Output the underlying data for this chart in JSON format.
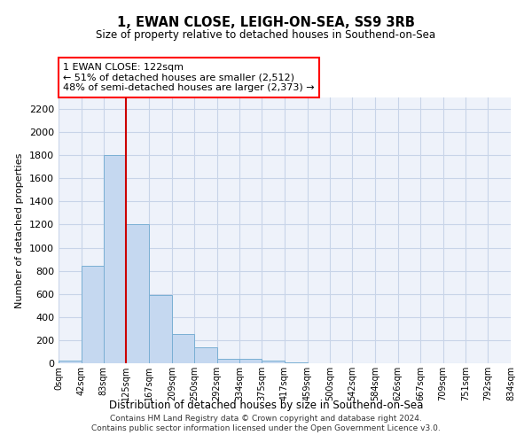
{
  "title": "1, EWAN CLOSE, LEIGH-ON-SEA, SS9 3RB",
  "subtitle": "Size of property relative to detached houses in Southend-on-Sea",
  "xlabel": "Distribution of detached houses by size in Southend-on-Sea",
  "ylabel": "Number of detached properties",
  "footer_line1": "Contains HM Land Registry data © Crown copyright and database right 2024.",
  "footer_line2": "Contains public sector information licensed under the Open Government Licence v3.0.",
  "annotation_line1": "1 EWAN CLOSE: 122sqm",
  "annotation_line2": "← 51% of detached houses are smaller (2,512)",
  "annotation_line3": "48% of semi-detached houses are larger (2,373) →",
  "bar_edges": [
    0,
    42,
    83,
    125,
    167,
    209,
    250,
    292,
    334,
    375,
    417,
    459,
    500,
    542,
    584,
    626,
    667,
    709,
    751,
    792,
    834
  ],
  "bar_heights": [
    25,
    845,
    1800,
    1200,
    590,
    255,
    135,
    35,
    35,
    25,
    10,
    0,
    0,
    0,
    0,
    0,
    0,
    0,
    0,
    0
  ],
  "bar_color": "#c5d8f0",
  "bar_edgecolor": "#7aafd4",
  "grid_color": "#c8d4e8",
  "vline_x": 125,
  "vline_color": "#cc0000",
  "bg_color": "#eef2fa",
  "ylim": [
    0,
    2300
  ],
  "yticks": [
    0,
    200,
    400,
    600,
    800,
    1000,
    1200,
    1400,
    1600,
    1800,
    2000,
    2200
  ],
  "tick_labels": [
    "0sqm",
    "42sqm",
    "83sqm",
    "125sqm",
    "167sqm",
    "209sqm",
    "250sqm",
    "292sqm",
    "334sqm",
    "375sqm",
    "417sqm",
    "459sqm",
    "500sqm",
    "542sqm",
    "584sqm",
    "626sqm",
    "667sqm",
    "709sqm",
    "751sqm",
    "792sqm",
    "834sqm"
  ]
}
